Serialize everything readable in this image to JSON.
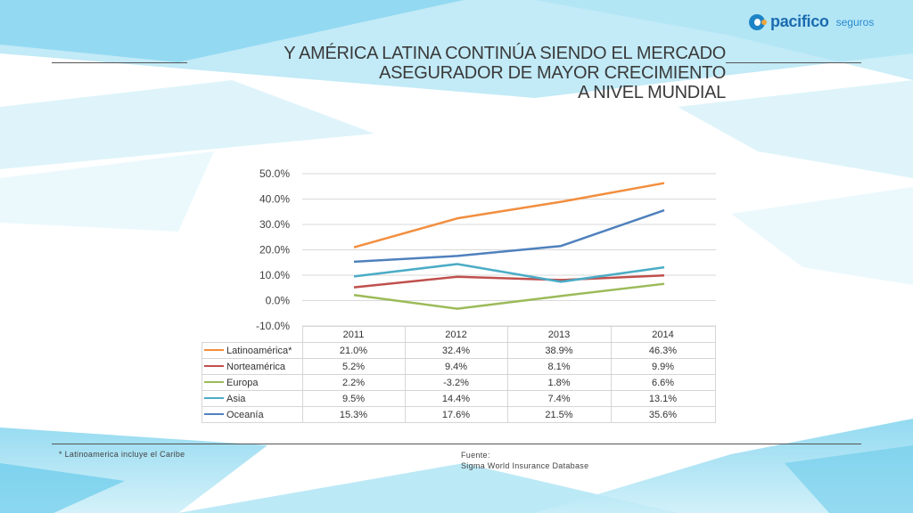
{
  "brand": {
    "name": "pacifico",
    "suffix": "seguros"
  },
  "slide_title": {
    "line1": "Y AMÉRICA LATINA CONTINÚA SIENDO EL MERCADO",
    "line2": "ASEGURADOR DE MAYOR CRECIMIENTO",
    "line3": "A NIVEL MUNDIAL"
  },
  "footer": {
    "note": "* Latinoamerica incluye el Caribe",
    "source_label": "Fuente:",
    "source_text": "Sigma World Insurance Database"
  },
  "colors": {
    "Latinoamérica*": "#f28e3f",
    "Norteamérica": "#c0504d",
    "Europa": "#9bbb59",
    "Asia": "#4bacc6",
    "Oceanía": "#4f81bd"
  },
  "chart_data": {
    "type": "line",
    "categories": [
      "2011",
      "2012",
      "2013",
      "2014"
    ],
    "series": [
      {
        "name": "Latinoamérica*",
        "values": [
          21.0,
          32.4,
          38.9,
          46.3
        ],
        "labels": [
          "21.0%",
          "32.4%",
          "38.9%",
          "46.3%"
        ]
      },
      {
        "name": "Norteamérica",
        "values": [
          5.2,
          9.4,
          8.1,
          9.9
        ],
        "labels": [
          "5.2%",
          "9.4%",
          "8.1%",
          "9.9%"
        ]
      },
      {
        "name": "Europa",
        "values": [
          2.2,
          -3.2,
          1.8,
          6.6
        ],
        "labels": [
          "2.2%",
          "-3.2%",
          "1.8%",
          "6.6%"
        ]
      },
      {
        "name": "Asia",
        "values": [
          9.5,
          14.4,
          7.4,
          13.1
        ],
        "labels": [
          "9.5%",
          "14.4%",
          "7.4%",
          "13.1%"
        ]
      },
      {
        "name": "Oceanía",
        "values": [
          15.3,
          17.6,
          21.5,
          35.6
        ],
        "labels": [
          "15.3%",
          "17.6%",
          "21.5%",
          "35.6%"
        ]
      }
    ],
    "yticks": [
      "50.0%",
      "40.0%",
      "30.0%",
      "20.0%",
      "10.0%",
      "0.0%",
      "-10.0%"
    ],
    "ylim": [
      -10,
      50
    ],
    "grid": true,
    "legend": "data table below chart"
  }
}
